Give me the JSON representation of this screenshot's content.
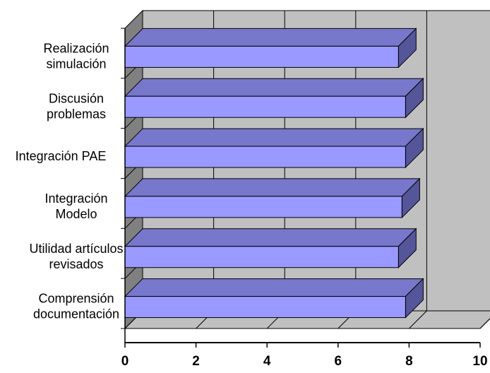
{
  "chart_data": {
    "type": "bar",
    "orientation": "horizontal",
    "three_d": true,
    "categories": [
      [
        "Realización",
        "simulación"
      ],
      [
        "Discusión",
        "problemas"
      ],
      [
        "Integración PAE"
      ],
      [
        "Integración",
        "Modelo"
      ],
      [
        "Utilidad artículos",
        "revisados"
      ],
      [
        "Comprensión",
        "documentación"
      ]
    ],
    "values": [
      7.7,
      7.9,
      7.9,
      7.8,
      7.7,
      7.9
    ],
    "title": "",
    "xlabel": "",
    "ylabel": "",
    "xlim": [
      0,
      10
    ],
    "x_ticks": [
      "0",
      "2",
      "4",
      "6",
      "8",
      "10"
    ],
    "grid": true,
    "legend": "none",
    "colors": {
      "bar_front": "#9999ff",
      "bar_top": "#7777cc",
      "bar_side": "#555599",
      "back_wall": "#c0c0c0",
      "side_wall": "#808080",
      "floor": "#c0c0c0",
      "gridline": "#000000"
    }
  }
}
